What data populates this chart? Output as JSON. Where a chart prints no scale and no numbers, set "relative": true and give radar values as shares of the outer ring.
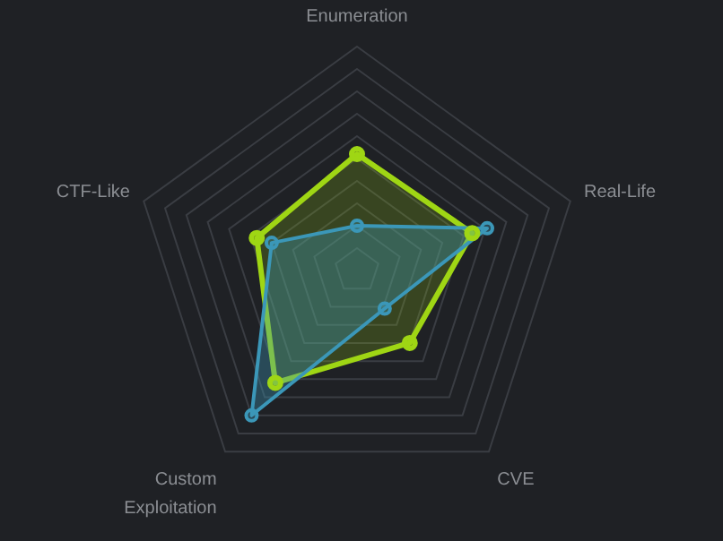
{
  "chart_data": {
    "type": "radar",
    "categories": [
      "Enumeration",
      "Real-Life",
      "CVE",
      "Custom Exploitation",
      "CTF-Like"
    ],
    "relative": true,
    "grid": true,
    "marker": "circle",
    "series": [
      {
        "color": "#9fd614",
        "values": [
          0.52,
          0.54,
          0.4,
          0.62,
          0.47
        ]
      },
      {
        "color": "#3b97b8",
        "values": [
          0.2,
          0.61,
          0.21,
          0.8,
          0.4
        ]
      }
    ]
  }
}
